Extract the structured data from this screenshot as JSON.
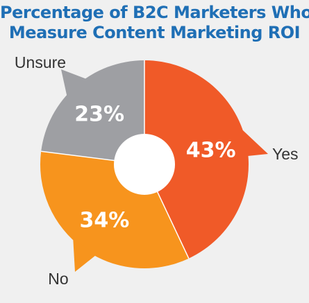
{
  "chart_data": {
    "type": "pie",
    "title": [
      "Percentage of B2C Marketers Who",
      "Measure Content Marketing ROI"
    ],
    "slices": [
      {
        "label": "Yes",
        "value": 43,
        "display": "43%",
        "color": "#f05a28"
      },
      {
        "label": "No",
        "value": 34,
        "display": "34%",
        "color": "#f7941d"
      },
      {
        "label": "Unsure",
        "value": 23,
        "display": "23%",
        "color": "#9e9fa3"
      }
    ],
    "donut": true,
    "legend": "labels outside slices with pointer callouts",
    "background": "#f0f0f0"
  }
}
